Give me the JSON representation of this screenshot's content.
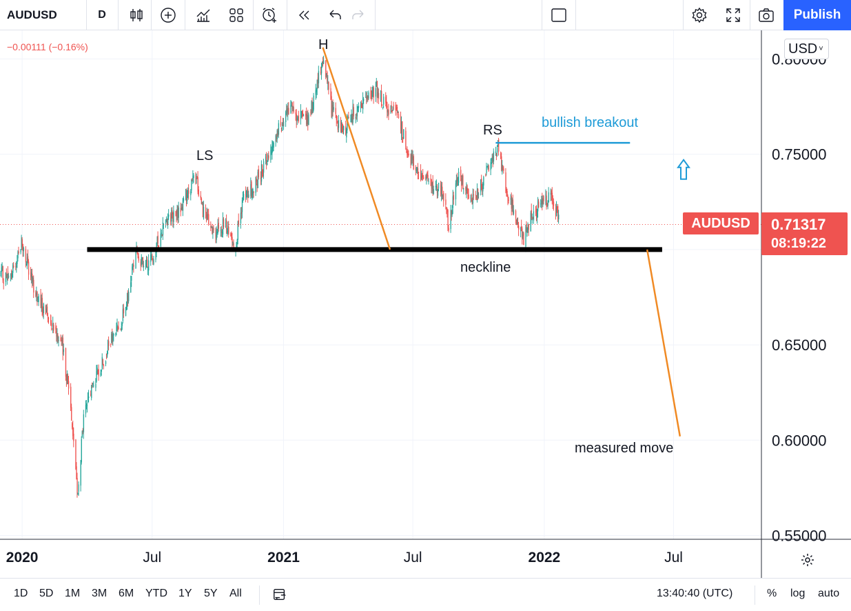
{
  "toolbar": {
    "symbol": "AUDUSD",
    "interval": "D",
    "publish_label": "Publish",
    "icons": [
      "candles-icon",
      "add-indicator-icon",
      "indicators-icon",
      "layout-grid-icon",
      "alert-clock-icon",
      "replay-icon",
      "undo-icon",
      "redo-icon",
      "layout-square-icon",
      "settings-icon",
      "fullscreen-icon",
      "camera-icon"
    ]
  },
  "header": {
    "change": "−0.00111 (−0.16%)",
    "currency": "USD"
  },
  "price_label": {
    "symbol": "AUDUSD",
    "price": "0.71317",
    "countdown": "08:19:22",
    "color": "#ef5350"
  },
  "annotations": {
    "h": "H",
    "ls": "LS",
    "rs": "RS",
    "neckline": "neckline",
    "bullish_breakout": "bullish breakout",
    "measured_move": "measured move"
  },
  "bottom": {
    "ranges": [
      "1D",
      "5D",
      "1M",
      "3M",
      "6M",
      "YTD",
      "1Y",
      "5Y",
      "All"
    ],
    "time": "13:40:40 (UTC)",
    "percent": "%",
    "log": "log",
    "auto": "auto"
  },
  "chart_data": {
    "type": "line",
    "subtype": "candlestick",
    "symbol": "AUDUSD",
    "x_ticks": [
      {
        "date": "2020-01-01",
        "label": "2020",
        "bold": true
      },
      {
        "date": "2020-07-01",
        "label": "Jul",
        "bold": false
      },
      {
        "date": "2021-01-01",
        "label": "2021",
        "bold": true
      },
      {
        "date": "2021-07-01",
        "label": "Jul",
        "bold": false
      },
      {
        "date": "2022-01-01",
        "label": "2022",
        "bold": true
      },
      {
        "date": "2022-07-01",
        "label": "Jul",
        "bold": false
      }
    ],
    "xlim": [
      "2019-12-01",
      "2022-11-01"
    ],
    "y_ticks": [
      0.55,
      0.6,
      0.65,
      0.7,
      0.75,
      0.8
    ],
    "y_tick_labels": [
      "0.55000",
      "0.60000",
      "0.65000",
      "0.70000",
      "0.75000",
      "0.80000"
    ],
    "ylim": [
      0.548,
      0.815
    ],
    "last_price": 0.71317,
    "up_color": "#26a69a",
    "down_color": "#ef5350",
    "series": [
      {
        "name": "AUDUSD",
        "x": [
          "2019-12-02",
          "2019-12-15",
          "2019-12-31",
          "2020-01-10",
          "2020-01-25",
          "2020-02-10",
          "2020-02-25",
          "2020-03-08",
          "2020-03-19",
          "2020-03-26",
          "2020-04-05",
          "2020-04-20",
          "2020-05-05",
          "2020-05-25",
          "2020-06-08",
          "2020-06-20",
          "2020-07-05",
          "2020-07-20",
          "2020-08-05",
          "2020-08-20",
          "2020-08-31",
          "2020-09-10",
          "2020-09-25",
          "2020-10-10",
          "2020-10-25",
          "2020-11-05",
          "2020-11-20",
          "2020-12-05",
          "2020-12-20",
          "2021-01-05",
          "2021-01-20",
          "2021-02-05",
          "2021-02-25",
          "2021-03-10",
          "2021-03-25",
          "2021-04-10",
          "2021-04-25",
          "2021-05-10",
          "2021-05-25",
          "2021-06-10",
          "2021-06-25",
          "2021-07-10",
          "2021-07-25",
          "2021-08-10",
          "2021-08-20",
          "2021-09-03",
          "2021-09-20",
          "2021-10-05",
          "2021-10-28",
          "2021-11-10",
          "2021-11-25",
          "2021-12-03",
          "2021-12-15",
          "2021-12-31",
          "2022-01-10",
          "2022-01-18",
          "2022-01-22"
        ],
        "values": [
          0.687,
          0.684,
          0.704,
          0.689,
          0.672,
          0.664,
          0.651,
          0.623,
          0.57,
          0.608,
          0.625,
          0.639,
          0.652,
          0.668,
          0.701,
          0.689,
          0.699,
          0.717,
          0.718,
          0.73,
          0.738,
          0.721,
          0.707,
          0.713,
          0.702,
          0.726,
          0.732,
          0.745,
          0.758,
          0.773,
          0.771,
          0.767,
          0.8,
          0.773,
          0.761,
          0.773,
          0.776,
          0.785,
          0.774,
          0.771,
          0.75,
          0.74,
          0.734,
          0.733,
          0.712,
          0.741,
          0.725,
          0.734,
          0.754,
          0.73,
          0.715,
          0.706,
          0.718,
          0.726,
          0.726,
          0.72,
          0.713
        ]
      }
    ],
    "overlays": {
      "neckline": {
        "color": "#000000",
        "x": [
          "2020-04-01",
          "2022-06-15"
        ],
        "y": [
          0.7,
          0.7
        ]
      },
      "bullish_breakout_line": {
        "color": "#1e9bd7",
        "x": [
          "2021-10-25",
          "2022-05-01"
        ],
        "y": [
          0.756,
          0.756
        ]
      },
      "head_height_line": {
        "color": "#f08a24",
        "x": [
          "2021-02-25",
          "2021-05-30"
        ],
        "y": [
          0.806,
          0.7
        ]
      },
      "measured_move_line": {
        "color": "#f08a24",
        "x": [
          "2022-05-25",
          "2022-07-10"
        ],
        "y": [
          0.7,
          0.602
        ]
      },
      "breakout_arrow": {
        "color": "#1e9bd7",
        "x": "2022-07-15",
        "y": 0.742
      }
    }
  }
}
